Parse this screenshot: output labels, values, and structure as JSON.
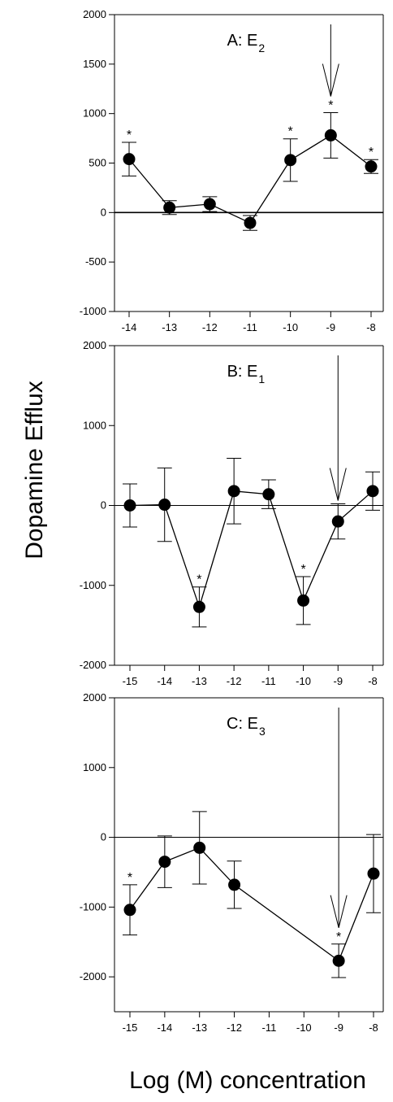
{
  "figure": {
    "ylabel": "Dopamine Efflux",
    "xlabel": "Log (M) concentration"
  },
  "chart_data": [
    {
      "type": "line",
      "title": "A:  E",
      "title_sub": "2",
      "x": [
        -14,
        -13,
        -12,
        -11,
        -10,
        -9,
        -8
      ],
      "series": [
        {
          "values": [
            540,
            50,
            85,
            -105,
            530,
            780,
            465
          ],
          "errors": [
            170,
            70,
            75,
            75,
            215,
            230,
            70
          ],
          "significant": [
            true,
            false,
            false,
            false,
            true,
            true,
            true
          ]
        }
      ],
      "xlim": [
        -14,
        -8
      ],
      "ylim": [
        -1000,
        2000
      ],
      "yticks": [
        -1000,
        -500,
        0,
        500,
        1000,
        1500,
        2000
      ],
      "xticks": [
        -14,
        -13,
        -12,
        -11,
        -10,
        -9,
        -8
      ],
      "arrow_at": -9,
      "zero_line": true,
      "significance_marker": "*"
    },
    {
      "type": "line",
      "title": "B:  E",
      "title_sub": "1",
      "x": [
        -15,
        -14,
        -13,
        -12,
        -11,
        -10,
        -9,
        -8
      ],
      "series": [
        {
          "values": [
            0,
            10,
            -1270,
            180,
            140,
            -1190,
            -200,
            180
          ],
          "errors": [
            270,
            460,
            250,
            410,
            180,
            300,
            220,
            240
          ],
          "significant": [
            false,
            false,
            true,
            false,
            false,
            true,
            false,
            false
          ]
        }
      ],
      "xlim": [
        -15,
        -8
      ],
      "ylim": [
        -2000,
        2000
      ],
      "yticks": [
        -2000,
        -1000,
        0,
        1000,
        2000
      ],
      "xticks": [
        -15,
        -14,
        -13,
        -12,
        -11,
        -10,
        -9,
        -8
      ],
      "arrow_at": -9,
      "zero_line": true,
      "significance_marker": "*"
    },
    {
      "type": "line",
      "title": "C:  E",
      "title_sub": "3",
      "x": [
        -15,
        -14,
        -13,
        -12,
        -9,
        -8
      ],
      "series": [
        {
          "values": [
            -1040,
            -350,
            -150,
            -680,
            -1770,
            -520
          ],
          "errors": [
            360,
            370,
            520,
            340,
            240,
            560
          ],
          "significant": [
            true,
            false,
            false,
            false,
            true,
            false
          ]
        }
      ],
      "xlim": [
        -15,
        -8
      ],
      "ylim": [
        -2500,
        2000
      ],
      "yticks": [
        -2000,
        -1000,
        0,
        1000,
        2000
      ],
      "xticks": [
        -15,
        -14,
        -13,
        -12,
        -11,
        -10,
        -9,
        -8
      ],
      "arrow_at": -9,
      "zero_line": true,
      "significance_marker": "*"
    }
  ]
}
